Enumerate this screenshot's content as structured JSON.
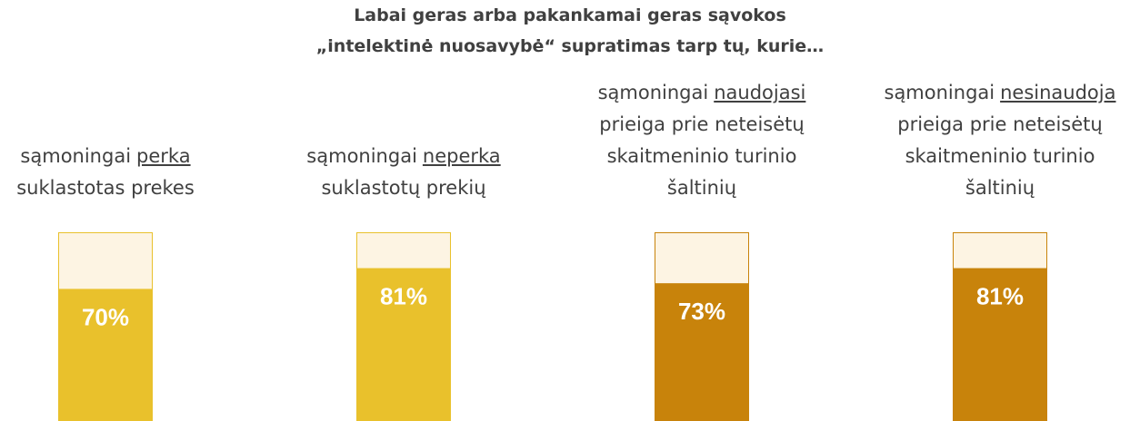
{
  "chart_data": {
    "type": "bar",
    "title": [
      "Labai geras arba pakankamai geras sąvokos",
      "„intelektinė nuosavybė“ supratimas tarp tų, kurie…"
    ],
    "categories": [
      {
        "before": "sąmoningai",
        "underlined": "perka",
        "after": [
          "suklastotas prekes"
        ]
      },
      {
        "before": "sąmoningai",
        "underlined": "neperka",
        "after": [
          "suklastotų prekių"
        ]
      },
      {
        "before": "sąmoningai",
        "underlined": "naudojasi",
        "after": [
          "prieiga prie neteisėtų",
          "skaitmeninio turinio",
          "šaltinių"
        ]
      },
      {
        "before": "sąmoningai",
        "underlined": "nesinaudoja",
        "after": [
          "prieiga prie neteisėtų",
          "skaitmeninio turinio",
          "šaltinių"
        ]
      }
    ],
    "values": [
      70,
      81,
      73,
      81
    ],
    "value_labels": [
      "70%",
      "81%",
      "73%",
      "81%"
    ],
    "colors": [
      "#E9C12C",
      "#E9C12C",
      "#C8830B",
      "#C8830B"
    ],
    "track_color": "#FDF4E3",
    "ylim": [
      0,
      100
    ]
  }
}
